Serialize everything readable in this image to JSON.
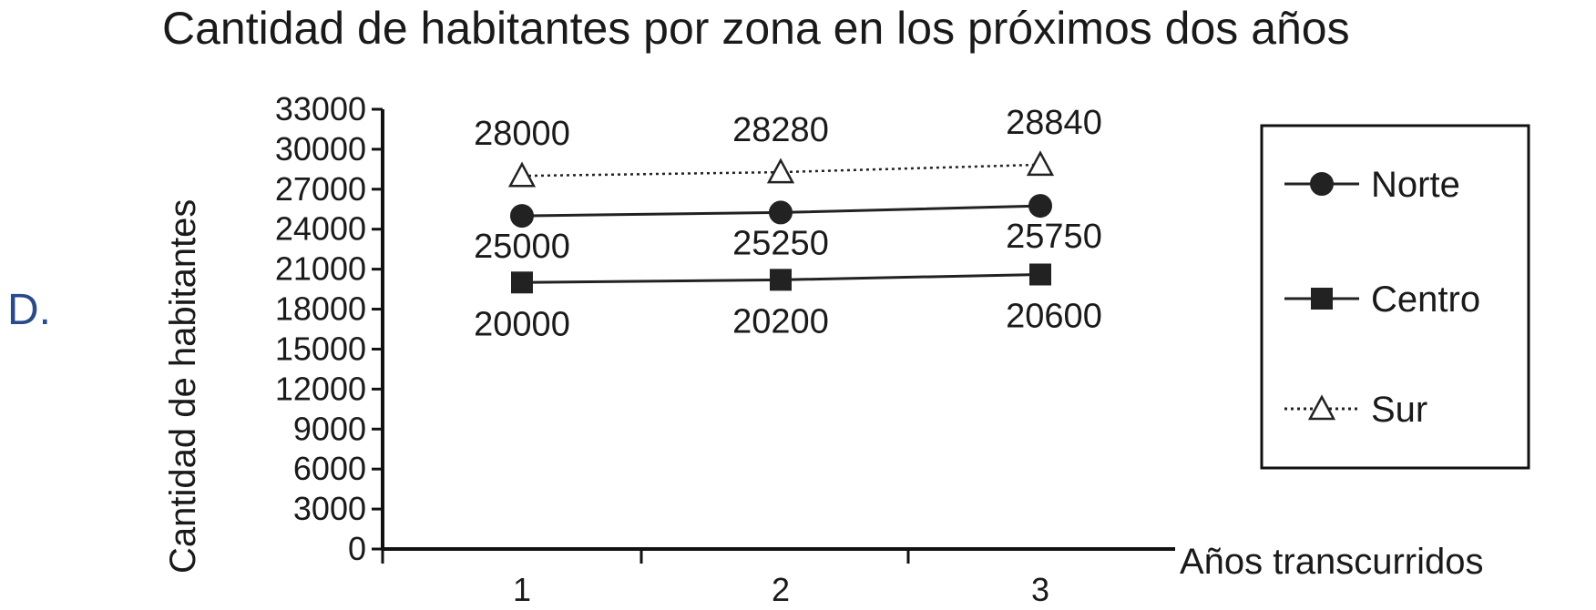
{
  "option_label": "D.",
  "chart_data": {
    "type": "line",
    "title": "Cantidad de habitantes por zona en los próximos dos años",
    "xlabel": "Años transcurridos",
    "ylabel": "Cantidad de habitantes",
    "categories": [
      "1",
      "2",
      "3"
    ],
    "ylim": [
      0,
      33000
    ],
    "yticks": [
      0,
      3000,
      6000,
      9000,
      12000,
      15000,
      18000,
      21000,
      24000,
      27000,
      30000,
      33000
    ],
    "grid": false,
    "legend_position": "right",
    "series": [
      {
        "name": "Norte",
        "values": [
          25000,
          25250,
          25750
        ],
        "marker": "circle",
        "line": "solid",
        "color": "#222222",
        "labels": [
          "25000",
          "25250",
          "25750"
        ]
      },
      {
        "name": "Centro",
        "values": [
          20000,
          20200,
          20600
        ],
        "marker": "square",
        "line": "solid",
        "color": "#222222",
        "labels": [
          "20000",
          "20200",
          "20600"
        ]
      },
      {
        "name": "Sur",
        "values": [
          28000,
          28280,
          28840
        ],
        "marker": "triangle",
        "line": "dotted",
        "color": "#222222",
        "labels": [
          "28000",
          "28280",
          "28840"
        ]
      }
    ]
  }
}
